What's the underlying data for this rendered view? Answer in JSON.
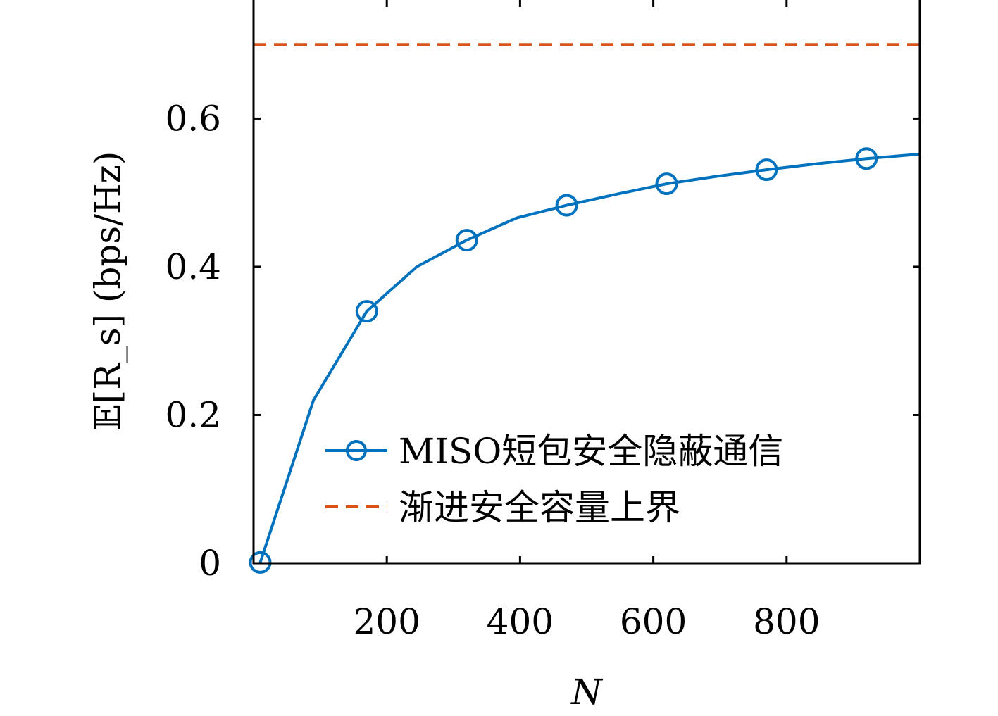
{
  "chart_data": {
    "type": "line",
    "title": "",
    "xlabel": "N",
    "ylabel": "𝔼[R_s] (bps/Hz)",
    "xlim": [
      0,
      1000
    ],
    "ylim": [
      0,
      0.76
    ],
    "x_ticks": [
      200,
      400,
      600,
      800
    ],
    "y_ticks": [
      0,
      0.2,
      0.4,
      0.6
    ],
    "grid": false,
    "legend_position": "bottom-right",
    "series": [
      {
        "name": "MISO短包安全隐蔽通信",
        "color": "#0072BD",
        "line_style": "solid",
        "marker": "circle",
        "x": [
          10,
          90,
          170,
          245,
          320,
          395,
          470,
          545,
          620,
          695,
          770,
          845,
          920,
          1000
        ],
        "y": [
          0.001,
          0.22,
          0.34,
          0.4,
          0.436,
          0.466,
          0.483,
          0.498,
          0.512,
          0.522,
          0.531,
          0.539,
          0.546,
          0.552
        ],
        "marker_indices": [
          0,
          2,
          4,
          6,
          8,
          10,
          12
        ]
      },
      {
        "name": "渐进安全容量上界",
        "color": "#D95319",
        "line_style": "dashed",
        "marker": "none",
        "x": [
          0,
          1000
        ],
        "y": [
          0.7,
          0.7
        ]
      }
    ]
  }
}
